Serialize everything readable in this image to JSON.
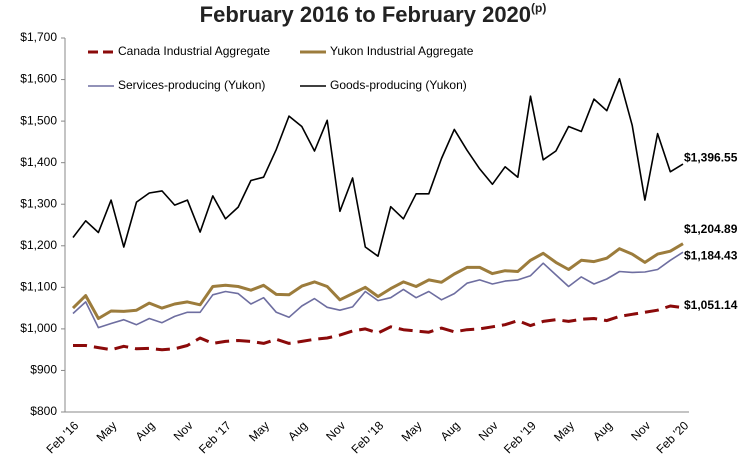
{
  "chart_data": {
    "type": "line",
    "title": "February 2016 to February 2020",
    "title_superscript": "(p)",
    "categories": [
      "Feb '16",
      null,
      null,
      "May",
      null,
      null,
      "Aug",
      null,
      null,
      "Nov",
      null,
      null,
      "Feb '17",
      null,
      null,
      "May",
      null,
      null,
      "Aug",
      null,
      null,
      "Nov",
      null,
      null,
      "Feb '18",
      null,
      null,
      "May",
      null,
      null,
      "Aug",
      null,
      null,
      "Nov",
      null,
      null,
      "Feb '19",
      null,
      null,
      "May",
      null,
      null,
      "Aug",
      null,
      null,
      "Nov",
      null,
      null,
      "Feb '20"
    ],
    "series": [
      {
        "name": "Canada Industrial Aggregate",
        "color": "#8b0a0a",
        "dashed": true,
        "line_width": 3,
        "values": [
          960,
          960,
          955,
          950,
          958,
          952,
          953,
          950,
          952,
          960,
          978,
          965,
          970,
          972,
          970,
          965,
          975,
          965,
          970,
          975,
          978,
          985,
          995,
          1000,
          990,
          1005,
          998,
          995,
          992,
          1002,
          993,
          998,
          1000,
          1005,
          1010,
          1020,
          1008,
          1018,
          1022,
          1018,
          1023,
          1025,
          1020,
          1030,
          1035,
          1040,
          1045,
          1055,
          1051.14
        ],
        "value_labels": [
          null,
          null,
          null,
          null,
          null,
          null,
          null,
          null,
          null,
          null,
          null,
          null,
          null,
          null,
          null,
          null,
          null,
          null,
          null,
          null,
          null,
          null,
          null,
          null,
          null,
          null,
          null,
          null,
          null,
          null,
          null,
          null,
          null,
          null,
          null,
          null,
          null,
          null,
          null,
          null,
          null,
          null,
          null,
          null,
          null,
          null,
          null,
          null,
          "$1,051.14"
        ]
      },
      {
        "name": "Yukon Industrial Aggregate",
        "color": "#9c7c3c",
        "dashed": false,
        "line_width": 3,
        "values": [
          1050,
          1080,
          1025,
          1043,
          1042,
          1045,
          1062,
          1050,
          1060,
          1065,
          1058,
          1102,
          1105,
          1102,
          1093,
          1105,
          1083,
          1082,
          1103,
          1113,
          1102,
          1070,
          1085,
          1100,
          1078,
          1097,
          1113,
          1102,
          1118,
          1112,
          1132,
          1148,
          1148,
          1133,
          1140,
          1138,
          1165,
          1182,
          1160,
          1143,
          1165,
          1162,
          1170,
          1193,
          1180,
          1160,
          1180,
          1187,
          1204.89
        ],
        "value_labels": [
          null,
          null,
          null,
          null,
          null,
          null,
          null,
          null,
          null,
          null,
          null,
          null,
          null,
          null,
          null,
          null,
          null,
          null,
          null,
          null,
          null,
          null,
          null,
          null,
          null,
          null,
          null,
          null,
          null,
          null,
          null,
          null,
          null,
          null,
          null,
          null,
          null,
          null,
          null,
          null,
          null,
          null,
          null,
          null,
          null,
          null,
          null,
          null,
          "$1,204.89"
        ]
      },
      {
        "name": "Services-producing (Yukon)",
        "color": "#6e6ea0",
        "dashed": false,
        "line_width": 1.6,
        "values": [
          1037,
          1065,
          1003,
          1013,
          1022,
          1010,
          1025,
          1015,
          1030,
          1040,
          1040,
          1082,
          1090,
          1085,
          1060,
          1075,
          1040,
          1028,
          1055,
          1073,
          1052,
          1045,
          1053,
          1090,
          1068,
          1075,
          1095,
          1075,
          1090,
          1070,
          1085,
          1110,
          1118,
          1108,
          1115,
          1118,
          1128,
          1158,
          1130,
          1102,
          1125,
          1108,
          1120,
          1138,
          1136,
          1137,
          1143,
          1165,
          1184.43
        ],
        "value_labels": [
          null,
          null,
          null,
          null,
          null,
          null,
          null,
          null,
          null,
          null,
          null,
          null,
          null,
          null,
          null,
          null,
          null,
          null,
          null,
          null,
          null,
          null,
          null,
          null,
          null,
          null,
          null,
          null,
          null,
          null,
          null,
          null,
          null,
          null,
          null,
          null,
          null,
          null,
          null,
          null,
          null,
          null,
          null,
          null,
          null,
          null,
          null,
          null,
          "$1,184.43"
        ]
      },
      {
        "name": "Goods-producing (Yukon)",
        "color": "#000000",
        "dashed": false,
        "line_width": 1.6,
        "values": [
          1220,
          1260,
          1232,
          1310,
          1197,
          1305,
          1327,
          1332,
          1298,
          1310,
          1233,
          1320,
          1265,
          1293,
          1357,
          1365,
          1432,
          1512,
          1487,
          1428,
          1502,
          1283,
          1363,
          1197,
          1175,
          1294,
          1265,
          1325,
          1325,
          1410,
          1480,
          1430,
          1385,
          1348,
          1390,
          1365,
          1560,
          1407,
          1428,
          1487,
          1475,
          1553,
          1525,
          1602,
          1490,
          1310,
          1470,
          1378,
          1396.55
        ],
        "value_labels": [
          null,
          null,
          null,
          null,
          null,
          null,
          null,
          null,
          null,
          null,
          null,
          null,
          null,
          null,
          null,
          null,
          null,
          null,
          null,
          null,
          null,
          null,
          null,
          null,
          null,
          null,
          null,
          null,
          null,
          null,
          null,
          null,
          null,
          null,
          null,
          null,
          null,
          null,
          null,
          null,
          null,
          null,
          null,
          null,
          null,
          null,
          null,
          null,
          "$1,396.55"
        ]
      }
    ],
    "ylim": [
      800,
      1700
    ],
    "yticks": [
      {
        "value": 800,
        "label": "$800"
      },
      {
        "value": 900,
        "label": "$900"
      },
      {
        "value": 1000,
        "label": "$1,000"
      },
      {
        "value": 1100,
        "label": "$1,100"
      },
      {
        "value": 1200,
        "label": "$1,200"
      },
      {
        "value": 1300,
        "label": "$1,300"
      },
      {
        "value": 1400,
        "label": "$1,400"
      },
      {
        "value": 1500,
        "label": "$1,500"
      },
      {
        "value": 1600,
        "label": "$1,600"
      },
      {
        "value": 1700,
        "label": "$1,700"
      }
    ],
    "grid": false
  }
}
